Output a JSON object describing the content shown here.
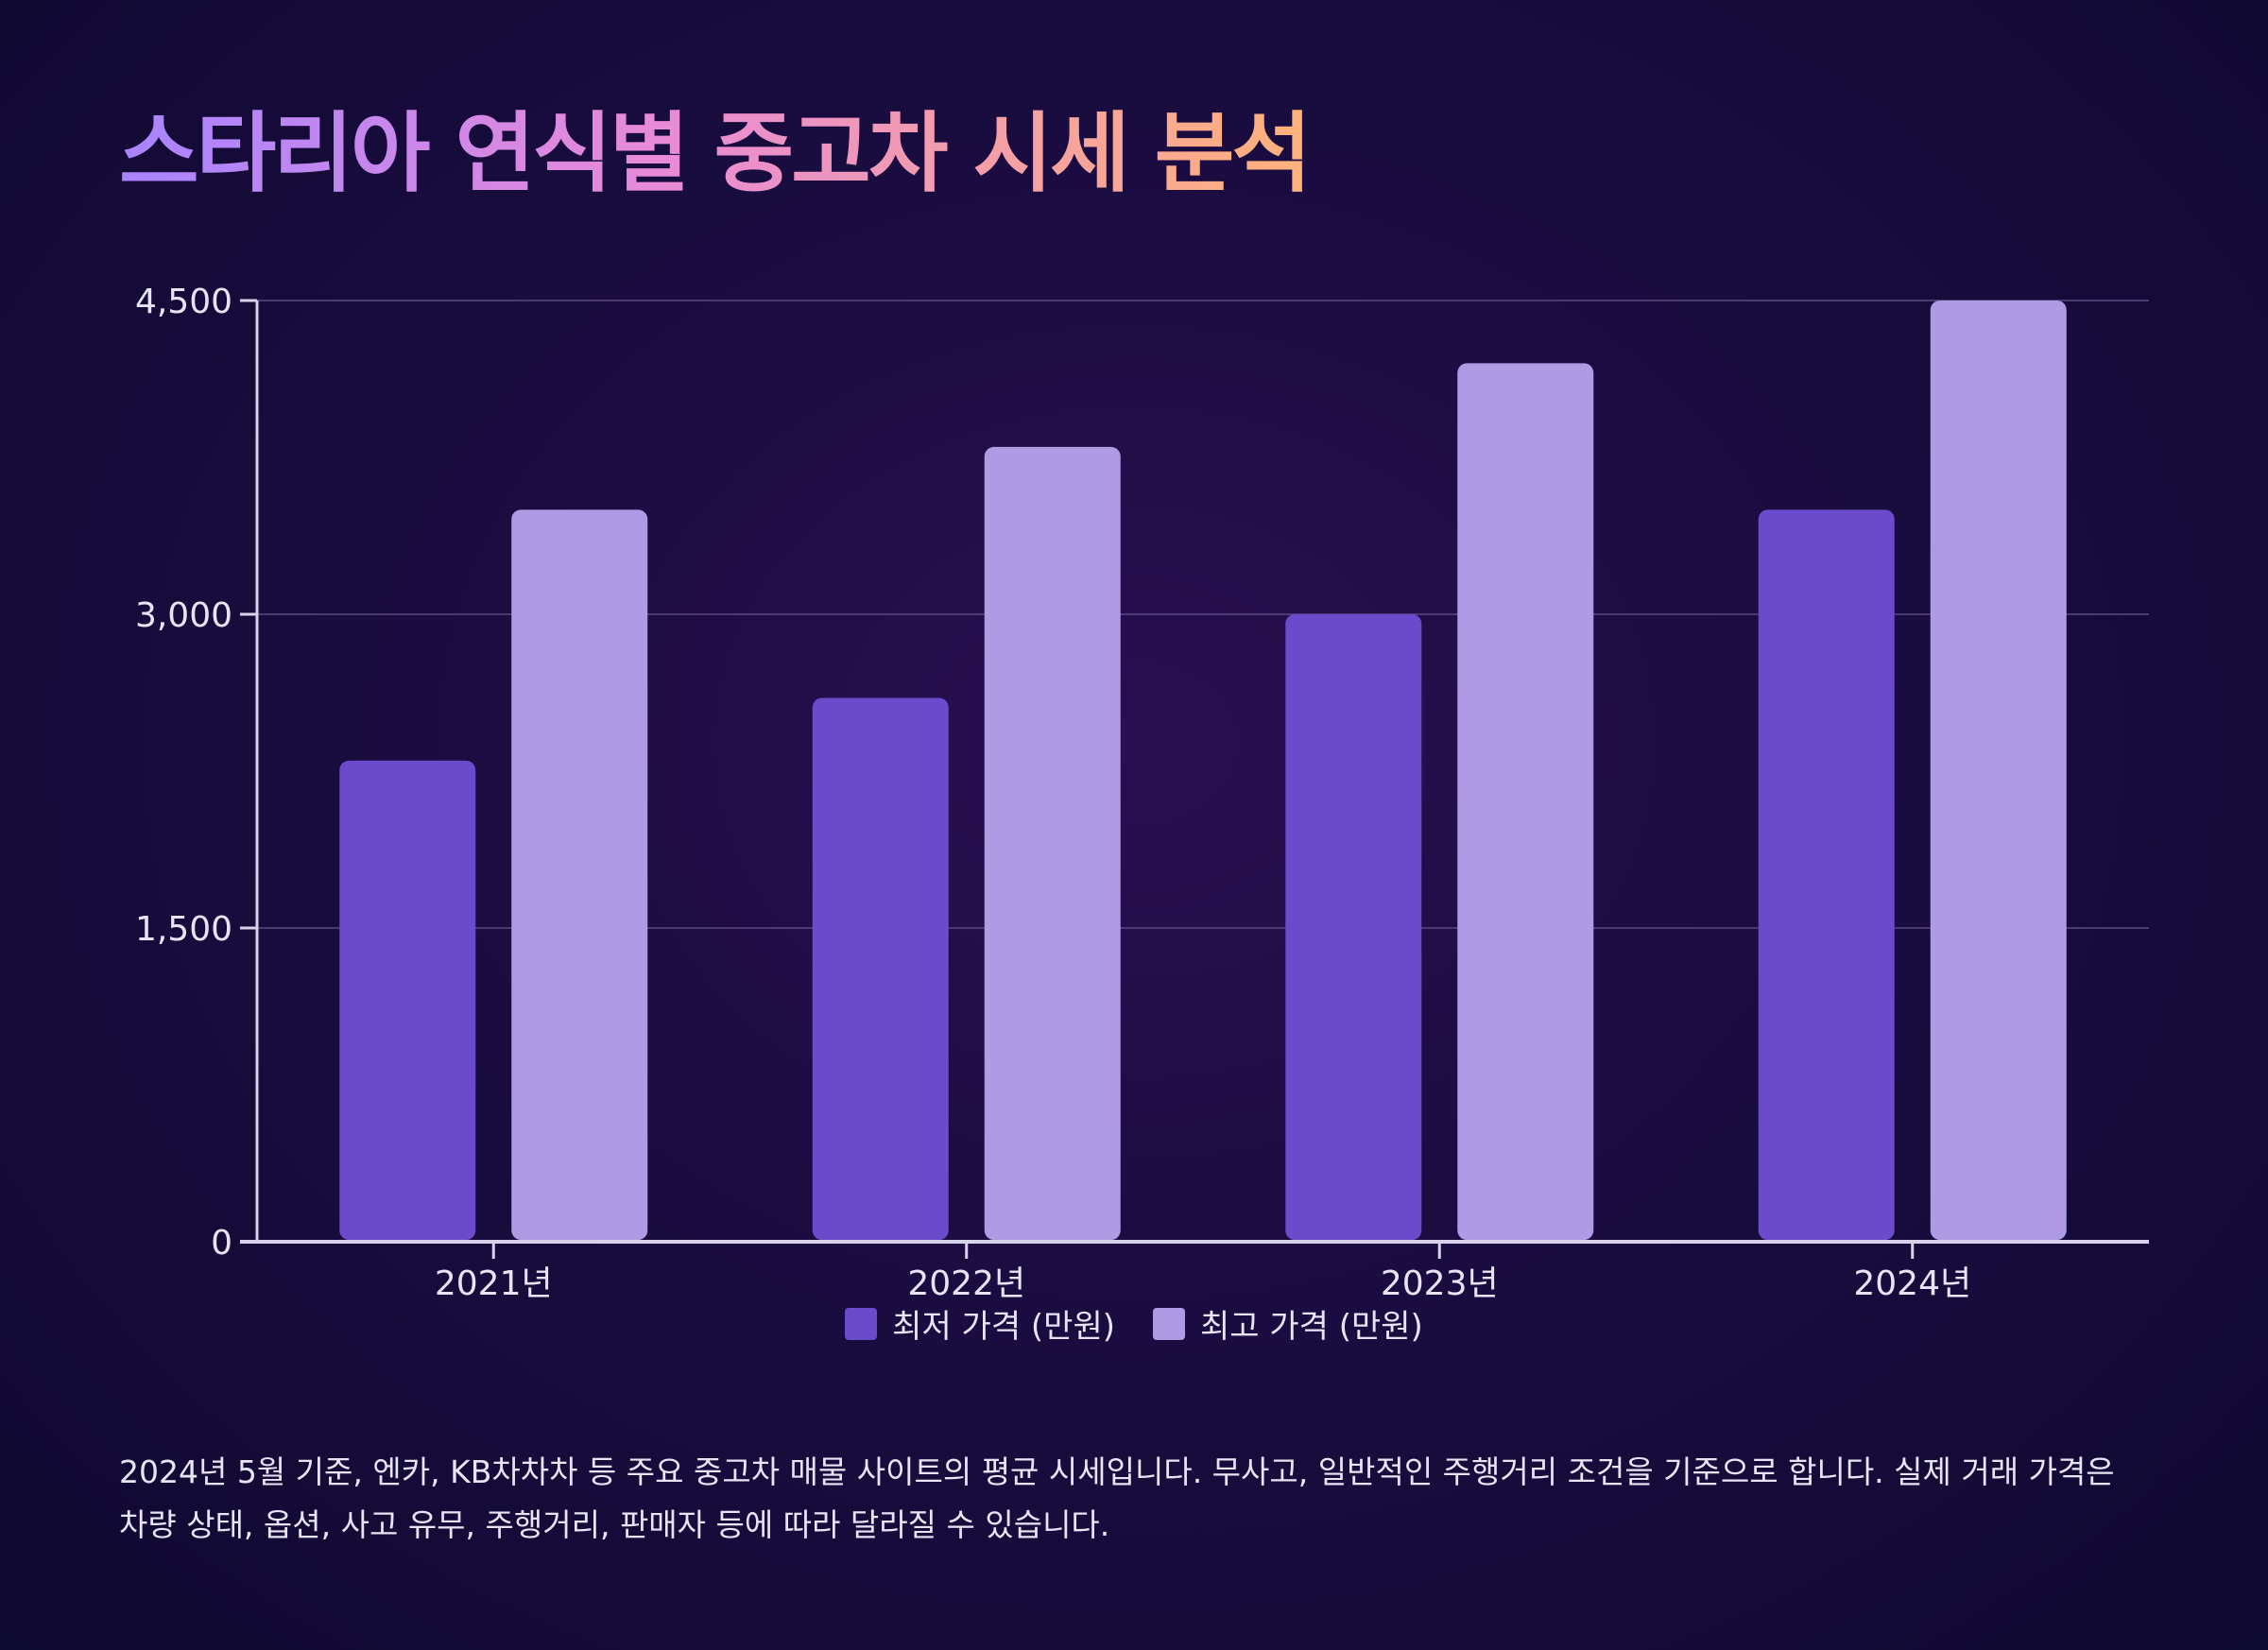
{
  "title": "스타리아 연식별 중고차 시세 분석",
  "footnote": "2024년 5월 기준, 엔카, KB차차차 등 주요 중고차 매물 사이트의 평균 시세입니다. 무사고, 일반적인 주행거리 조건을 기준으로 합니다. 실제 거래 가격은 차량 상태, 옵션, 사고 유무, 주행거리, 판매자 등에 따라 달라질 수 있습니다.",
  "chart_data": {
    "type": "bar",
    "categories": [
      "2021년",
      "2022년",
      "2023년",
      "2024년"
    ],
    "series": [
      {
        "name": "최저 가격 (만원)",
        "values": [
          2300,
          2600,
          3000,
          3500
        ],
        "color": "#6a4bcb"
      },
      {
        "name": "최고 가격 (만원)",
        "values": [
          3500,
          3800,
          4200,
          4500
        ],
        "color": "#ae9be3"
      }
    ],
    "ylim": [
      0,
      4500
    ],
    "yticks": [
      0,
      1500,
      3000,
      4500
    ],
    "ytick_labels": [
      "0",
      "1,500",
      "3,000",
      "4,500"
    ],
    "grid": true,
    "legend": "bottom-center"
  }
}
